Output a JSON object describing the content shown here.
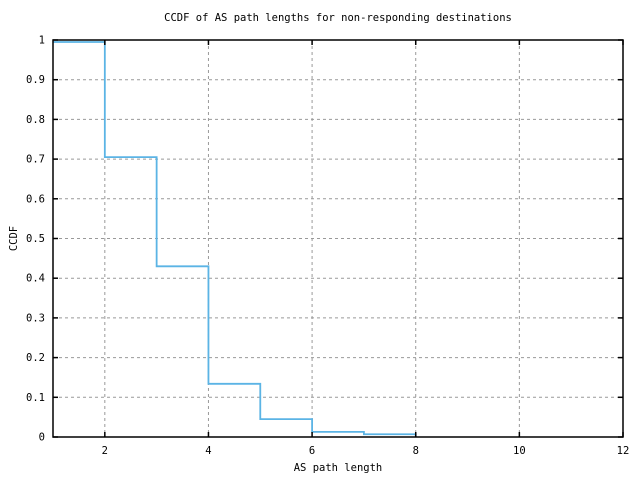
{
  "title": "CCDF of AS path lengths for non-responding destinations",
  "chart_data": {
    "type": "line",
    "style": "step-post",
    "title": "CCDF of AS path lengths for non-responding destinations",
    "xlabel": "AS path length",
    "ylabel": "CCDF",
    "xlim": [
      1,
      12
    ],
    "ylim": [
      0,
      1
    ],
    "x_ticks": [
      2,
      4,
      6,
      8,
      10,
      12
    ],
    "x_tick_labels": [
      "2",
      "4",
      "6",
      "8",
      "10",
      "12"
    ],
    "y_ticks": [
      0,
      0.1,
      0.2,
      0.3,
      0.4,
      0.5,
      0.6,
      0.7,
      0.8,
      0.9,
      1
    ],
    "y_tick_labels": [
      "0",
      "0.1",
      "0.2",
      "0.3",
      "0.4",
      "0.5",
      "0.6",
      "0.7",
      "0.8",
      "0.9",
      "1"
    ],
    "grid": true,
    "legend": "none",
    "colors": {
      "line": "#5bb4e5",
      "grid": "#999999",
      "frame": "#000000",
      "background": "#ffffff",
      "text": "#000000"
    },
    "series": [
      {
        "name": "ccdf",
        "x": [
          1,
          2,
          3,
          4,
          5,
          6,
          7,
          8
        ],
        "y": [
          0.995,
          0.705,
          0.43,
          0.134,
          0.045,
          0.013,
          0.007,
          0.002
        ]
      }
    ]
  }
}
